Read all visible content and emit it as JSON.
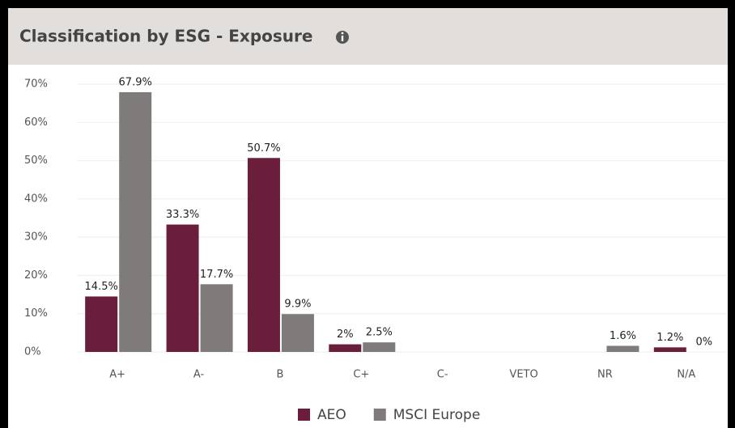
{
  "chart_data": {
    "type": "bar",
    "title": "Classification by ESG - Exposure",
    "categories": [
      "A+",
      "A-",
      "B",
      "C+",
      "C-",
      "VETO",
      "NR",
      "N/A"
    ],
    "series": [
      {
        "name": "AEO",
        "color": "#6b1e3b",
        "values": [
          14.5,
          33.3,
          50.7,
          2,
          null,
          null,
          null,
          1.2
        ],
        "value_labels": [
          "14.5%",
          "33.3%",
          "50.7%",
          "2%",
          null,
          null,
          null,
          "1.2%"
        ]
      },
      {
        "name": "MSCI Europe",
        "color": "#7f7b7b",
        "values": [
          67.9,
          17.7,
          9.9,
          2.5,
          null,
          null,
          1.6,
          0
        ],
        "value_labels": [
          "67.9%",
          "17.7%",
          "9.9%",
          "2.5%",
          null,
          null,
          "1.6%",
          "0%"
        ]
      }
    ],
    "ylim": [
      0,
      70
    ],
    "yticks": [
      {
        "value": 0,
        "label": "0%"
      },
      {
        "value": 10,
        "label": "10%"
      },
      {
        "value": 20,
        "label": "20%"
      },
      {
        "value": 30,
        "label": "30%"
      },
      {
        "value": 40,
        "label": "40%"
      },
      {
        "value": 50,
        "label": "50%"
      },
      {
        "value": 60,
        "label": "60%"
      },
      {
        "value": 70,
        "label": "70%"
      }
    ],
    "grid": true,
    "legend": "bottom"
  }
}
